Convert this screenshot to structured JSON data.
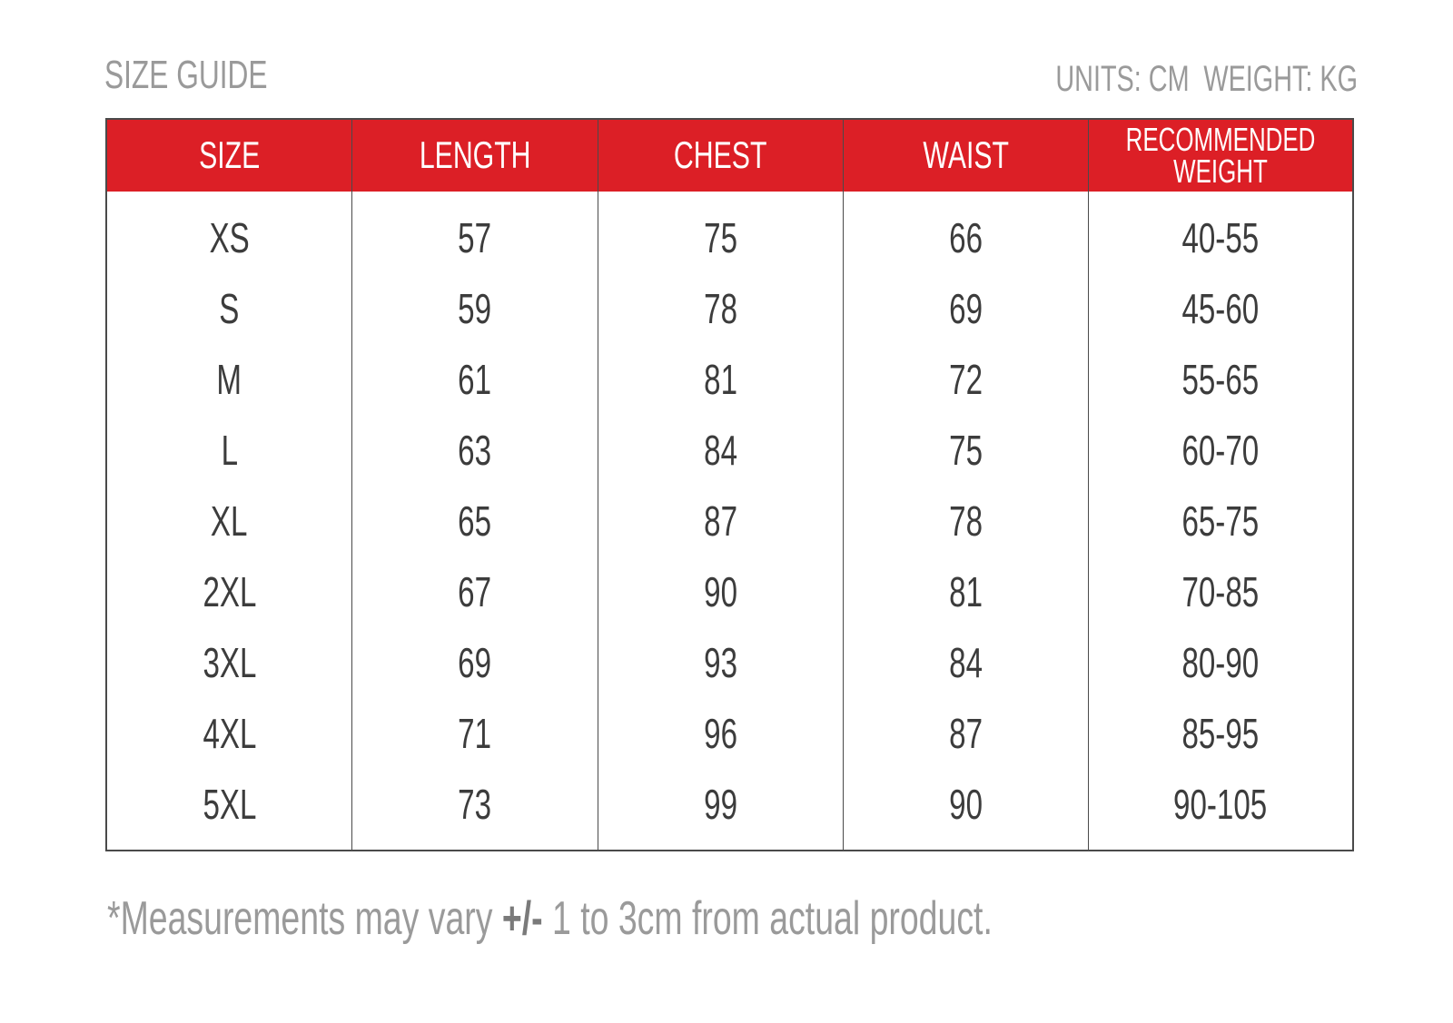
{
  "title": "SIZE GUIDE",
  "units": {
    "length": "UNITS: CM",
    "weight": "WEIGHT: KG"
  },
  "colors": {
    "header_bg": "#dc1f26",
    "header_text": "#ffffff",
    "muted_text": "#9a9a9a",
    "cell_text": "#3c3c3c",
    "border": "#4a4a4a"
  },
  "table": {
    "columns": [
      {
        "label": "SIZE",
        "label_line2": ""
      },
      {
        "label": "LENGTH",
        "label_line2": ""
      },
      {
        "label": "CHEST",
        "label_line2": ""
      },
      {
        "label": "WAIST",
        "label_line2": ""
      },
      {
        "label": "RECOMMENDED",
        "label_line2": "WEIGHT"
      }
    ],
    "rows": [
      [
        "XS",
        "57",
        "75",
        "66",
        "40-55"
      ],
      [
        "S",
        "59",
        "78",
        "69",
        "45-60"
      ],
      [
        "M",
        "61",
        "81",
        "72",
        "55-65"
      ],
      [
        "L",
        "63",
        "84",
        "75",
        "60-70"
      ],
      [
        "XL",
        "65",
        "87",
        "78",
        "65-75"
      ],
      [
        "2XL",
        "67",
        "90",
        "81",
        "70-85"
      ],
      [
        "3XL",
        "69",
        "93",
        "84",
        "80-90"
      ],
      [
        "4XL",
        "71",
        "96",
        "87",
        "85-95"
      ],
      [
        "5XL",
        "73",
        "99",
        "90",
        "90-105"
      ]
    ]
  },
  "footnote": {
    "prefix": "*Measurements may vary ",
    "plus_minus": "+/-",
    "suffix": " 1 to 3cm from actual product."
  }
}
